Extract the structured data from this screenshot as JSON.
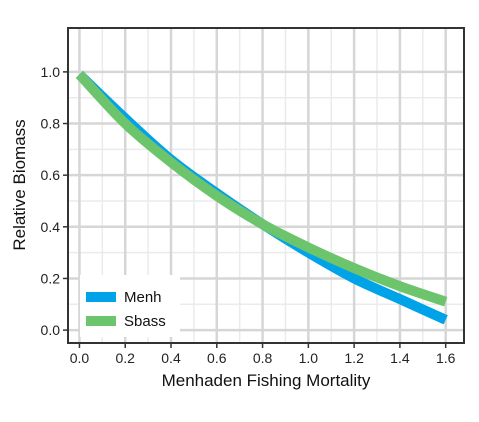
{
  "chart_data": {
    "type": "line",
    "xlabel": "Menhaden Fishing Mortality",
    "ylabel": "Relative Biomass",
    "xlim": [
      -0.05,
      1.68
    ],
    "ylim": [
      -0.05,
      1.17
    ],
    "xticks": [
      0.0,
      0.2,
      0.4,
      0.6,
      0.8,
      1.0,
      1.2,
      1.4,
      1.6
    ],
    "xtick_labels": [
      "0.0",
      "0.2",
      "0.4",
      "0.6",
      "0.8",
      "1.0",
      "1.2",
      "1.4",
      "1.6"
    ],
    "yticks": [
      0.0,
      0.2,
      0.4,
      0.6,
      0.8,
      1.0
    ],
    "ytick_labels": [
      "0.0",
      "0.2",
      "0.4",
      "0.6",
      "0.8",
      "1.0"
    ],
    "grid": true,
    "legend": "bottom-left",
    "series": [
      {
        "name": "Menh",
        "color": "#00a2e8",
        "x": [
          0.0,
          0.2,
          0.4,
          0.6,
          0.8,
          1.0,
          1.2,
          1.4,
          1.6
        ],
        "y": [
          0.99,
          0.82,
          0.66,
          0.53,
          0.41,
          0.3,
          0.2,
          0.12,
          0.04
        ]
      },
      {
        "name": "Sbass",
        "color": "#6cc46c",
        "x": [
          0.0,
          0.2,
          0.4,
          0.6,
          0.8,
          1.0,
          1.2,
          1.4,
          1.6
        ],
        "y": [
          0.99,
          0.8,
          0.65,
          0.52,
          0.41,
          0.32,
          0.24,
          0.17,
          0.11
        ]
      }
    ]
  }
}
